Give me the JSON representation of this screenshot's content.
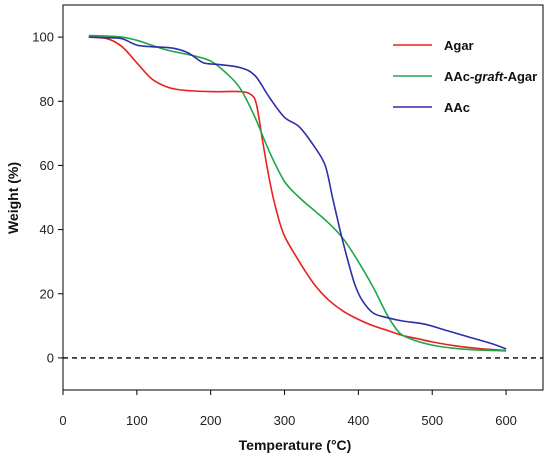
{
  "chart_data": {
    "type": "line",
    "title": "",
    "xlabel": "Temperature  (°C)",
    "ylabel": "Weight (%)",
    "xlim": [
      0,
      650
    ],
    "ylim": [
      -10,
      110
    ],
    "xticks": [
      0,
      100,
      200,
      300,
      400,
      500,
      600
    ],
    "yticks": [
      0,
      20,
      40,
      60,
      80,
      100
    ],
    "grid": false,
    "legend_position": "top-right",
    "reference_line": {
      "y": 0,
      "style": "dashed",
      "color": "#000000"
    },
    "legend": {
      "items": [
        {
          "prefix": "Agar",
          "italic": "",
          "suffix": ""
        },
        {
          "prefix": "AAc-",
          "italic": "graft",
          "suffix": "-Agar"
        },
        {
          "prefix": "AAc",
          "italic": "",
          "suffix": ""
        }
      ]
    },
    "series": [
      {
        "name": "Agar",
        "color": "#e8201e",
        "points": [
          [
            35,
            100
          ],
          [
            60,
            99.5
          ],
          [
            80,
            97
          ],
          [
            100,
            92
          ],
          [
            120,
            87
          ],
          [
            140,
            84.5
          ],
          [
            160,
            83.5
          ],
          [
            200,
            83
          ],
          [
            240,
            83
          ],
          [
            255,
            82
          ],
          [
            262,
            79
          ],
          [
            270,
            68
          ],
          [
            280,
            55
          ],
          [
            290,
            45
          ],
          [
            300,
            38
          ],
          [
            320,
            30
          ],
          [
            340,
            23
          ],
          [
            360,
            18
          ],
          [
            380,
            14.5
          ],
          [
            400,
            12
          ],
          [
            420,
            10
          ],
          [
            440,
            8.5
          ],
          [
            460,
            7
          ],
          [
            480,
            6
          ],
          [
            500,
            5
          ],
          [
            530,
            3.8
          ],
          [
            560,
            3
          ],
          [
            600,
            2.3
          ]
        ]
      },
      {
        "name": "AAc-graft-Agar",
        "color": "#1fa64a",
        "points": [
          [
            35,
            100.5
          ],
          [
            60,
            100.3
          ],
          [
            80,
            100
          ],
          [
            100,
            99
          ],
          [
            120,
            97.5
          ],
          [
            140,
            96
          ],
          [
            160,
            95
          ],
          [
            180,
            94
          ],
          [
            200,
            92.5
          ],
          [
            220,
            89
          ],
          [
            240,
            84
          ],
          [
            260,
            75
          ],
          [
            280,
            64
          ],
          [
            300,
            55
          ],
          [
            320,
            50
          ],
          [
            340,
            46
          ],
          [
            360,
            42
          ],
          [
            380,
            37
          ],
          [
            400,
            30
          ],
          [
            420,
            22
          ],
          [
            440,
            13
          ],
          [
            455,
            8
          ],
          [
            470,
            6
          ],
          [
            500,
            4
          ],
          [
            530,
            3
          ],
          [
            560,
            2.5
          ],
          [
            600,
            2.2
          ]
        ]
      },
      {
        "name": "AAc",
        "color": "#2e2ea8",
        "points": [
          [
            35,
            100
          ],
          [
            60,
            99.8
          ],
          [
            80,
            99.5
          ],
          [
            100,
            97.5
          ],
          [
            120,
            97
          ],
          [
            150,
            96.5
          ],
          [
            170,
            95
          ],
          [
            190,
            92
          ],
          [
            210,
            91.5
          ],
          [
            240,
            90.5
          ],
          [
            260,
            88
          ],
          [
            280,
            81
          ],
          [
            300,
            75
          ],
          [
            320,
            72
          ],
          [
            340,
            66
          ],
          [
            355,
            60
          ],
          [
            365,
            50
          ],
          [
            375,
            40
          ],
          [
            385,
            31
          ],
          [
            395,
            23
          ],
          [
            405,
            18
          ],
          [
            420,
            14
          ],
          [
            440,
            12.5
          ],
          [
            460,
            11.5
          ],
          [
            490,
            10.5
          ],
          [
            520,
            8.5
          ],
          [
            550,
            6.5
          ],
          [
            580,
            4.5
          ],
          [
            600,
            2.8
          ]
        ]
      }
    ]
  }
}
